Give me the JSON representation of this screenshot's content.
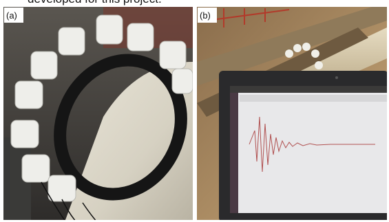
{
  "caption_fragment": "developed for this project.",
  "panels": [
    {
      "label": "(a)"
    },
    {
      "label": "(b)"
    }
  ]
}
